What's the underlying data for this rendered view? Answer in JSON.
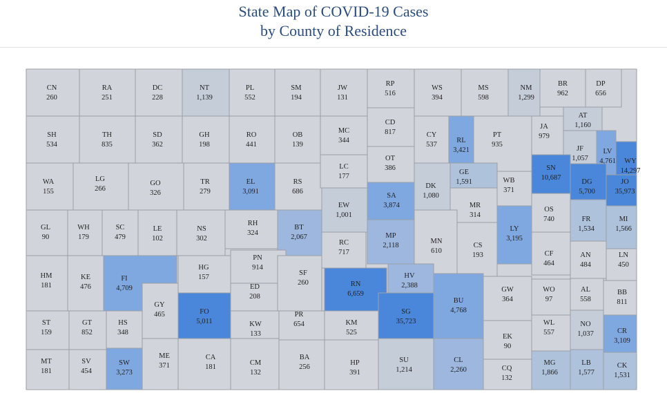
{
  "title": {
    "line1": "State Map of COVID-19 Cases",
    "line2": "by County of Residence"
  },
  "colors": {
    "level0": "#d1d5db",
    "level1": "#c5cdd8",
    "level2": "#afc2dc",
    "level3": "#9db7df",
    "level4": "#80a8e0",
    "level5": "#4a87db",
    "border": "#9aa0a6"
  },
  "counties": [
    {
      "abbr": "CN",
      "cases": "260"
    },
    {
      "abbr": "RA",
      "cases": "251"
    },
    {
      "abbr": "DC",
      "cases": "228"
    },
    {
      "abbr": "NT",
      "cases": "1,139"
    },
    {
      "abbr": "PL",
      "cases": "552"
    },
    {
      "abbr": "SM",
      "cases": "194"
    },
    {
      "abbr": "JW",
      "cases": "131"
    },
    {
      "abbr": "RP",
      "cases": "516"
    },
    {
      "abbr": "WS",
      "cases": "394"
    },
    {
      "abbr": "MS",
      "cases": "598"
    },
    {
      "abbr": "NM",
      "cases": "1,299"
    },
    {
      "abbr": "BR",
      "cases": "962"
    },
    {
      "abbr": "DP",
      "cases": "656"
    },
    {
      "abbr": "SH",
      "cases": "534"
    },
    {
      "abbr": "TH",
      "cases": "835"
    },
    {
      "abbr": "SD",
      "cases": "362"
    },
    {
      "abbr": "GH",
      "cases": "198"
    },
    {
      "abbr": "RO",
      "cases": "441"
    },
    {
      "abbr": "OB",
      "cases": "139"
    },
    {
      "abbr": "MC",
      "cases": "344"
    },
    {
      "abbr": "CD",
      "cases": "817"
    },
    {
      "abbr": "CY",
      "cases": "537"
    },
    {
      "abbr": "RL",
      "cases": "3,421"
    },
    {
      "abbr": "PT",
      "cases": "935"
    },
    {
      "abbr": "JA",
      "cases": "979"
    },
    {
      "abbr": "AT",
      "cases": "1,160"
    },
    {
      "abbr": "JF",
      "cases": "1,057"
    },
    {
      "abbr": "LV",
      "cases": "4,761"
    },
    {
      "abbr": "WY",
      "cases": "14,297"
    },
    {
      "abbr": "WA",
      "cases": "155"
    },
    {
      "abbr": "LG",
      "cases": "266"
    },
    {
      "abbr": "GO",
      "cases": "326"
    },
    {
      "abbr": "TR",
      "cases": "279"
    },
    {
      "abbr": "EL",
      "cases": "3,091"
    },
    {
      "abbr": "RS",
      "cases": "686"
    },
    {
      "abbr": "LC",
      "cases": "177"
    },
    {
      "abbr": "OT",
      "cases": "386"
    },
    {
      "abbr": "DK",
      "cases": "1,080"
    },
    {
      "abbr": "GE",
      "cases": "1,591"
    },
    {
      "abbr": "WB",
      "cases": "371"
    },
    {
      "abbr": "SN",
      "cases": "10,687"
    },
    {
      "abbr": "DG",
      "cases": "5,700"
    },
    {
      "abbr": "JO",
      "cases": "35,973"
    },
    {
      "abbr": "GL",
      "cases": "90"
    },
    {
      "abbr": "WH",
      "cases": "179"
    },
    {
      "abbr": "SC",
      "cases": "479"
    },
    {
      "abbr": "LE",
      "cases": "102"
    },
    {
      "abbr": "NS",
      "cases": "302"
    },
    {
      "abbr": "RH",
      "cases": "324"
    },
    {
      "abbr": "BT",
      "cases": "2,067"
    },
    {
      "abbr": "EW",
      "cases": "1,001"
    },
    {
      "abbr": "SA",
      "cases": "3,874"
    },
    {
      "abbr": "MR",
      "cases": "314"
    },
    {
      "abbr": "OS",
      "cases": "740"
    },
    {
      "abbr": "FR",
      "cases": "1,534"
    },
    {
      "abbr": "MI",
      "cases": "1,566"
    },
    {
      "abbr": "HM",
      "cases": "181"
    },
    {
      "abbr": "KE",
      "cases": "476"
    },
    {
      "abbr": "FI",
      "cases": "4,709"
    },
    {
      "abbr": "GY",
      "cases": "465"
    },
    {
      "abbr": "HG",
      "cases": "157"
    },
    {
      "abbr": "PN",
      "cases": "914"
    },
    {
      "abbr": "RC",
      "cases": "717"
    },
    {
      "abbr": "MP",
      "cases": "2,118"
    },
    {
      "abbr": "MN",
      "cases": "610"
    },
    {
      "abbr": "CS",
      "cases": "193"
    },
    {
      "abbr": "LY",
      "cases": "3,195"
    },
    {
      "abbr": "CF",
      "cases": "464"
    },
    {
      "abbr": "AN",
      "cases": "484"
    },
    {
      "abbr": "LN",
      "cases": "450"
    },
    {
      "abbr": "ED",
      "cases": "208"
    },
    {
      "abbr": "SF",
      "cases": "260"
    },
    {
      "abbr": "RN",
      "cases": "6,659"
    },
    {
      "abbr": "HV",
      "cases": "2,388"
    },
    {
      "abbr": "BU",
      "cases": "4,768"
    },
    {
      "abbr": "GW",
      "cases": "364"
    },
    {
      "abbr": "WO",
      "cases": "97"
    },
    {
      "abbr": "AL",
      "cases": "558"
    },
    {
      "abbr": "BB",
      "cases": "811"
    },
    {
      "abbr": "ST",
      "cases": "159"
    },
    {
      "abbr": "GT",
      "cases": "852"
    },
    {
      "abbr": "HS",
      "cases": "348"
    },
    {
      "abbr": "FO",
      "cases": "5,011"
    },
    {
      "abbr": "KW",
      "cases": "133"
    },
    {
      "abbr": "PR",
      "cases": "654"
    },
    {
      "abbr": "KM",
      "cases": "525"
    },
    {
      "abbr": "SG",
      "cases": "35,723"
    },
    {
      "abbr": "EK",
      "cases": "90"
    },
    {
      "abbr": "WL",
      "cases": "557"
    },
    {
      "abbr": "NO",
      "cases": "1,037"
    },
    {
      "abbr": "CR",
      "cases": "3,109"
    },
    {
      "abbr": "MT",
      "cases": "181"
    },
    {
      "abbr": "SV",
      "cases": "454"
    },
    {
      "abbr": "SW",
      "cases": "3,273"
    },
    {
      "abbr": "ME",
      "cases": "371"
    },
    {
      "abbr": "CA",
      "cases": "181"
    },
    {
      "abbr": "CM",
      "cases": "132"
    },
    {
      "abbr": "BA",
      "cases": "256"
    },
    {
      "abbr": "HP",
      "cases": "391"
    },
    {
      "abbr": "SU",
      "cases": "1,214"
    },
    {
      "abbr": "CL",
      "cases": "2,260"
    },
    {
      "abbr": "CQ",
      "cases": "132"
    },
    {
      "abbr": "MG",
      "cases": "1,866"
    },
    {
      "abbr": "LB",
      "cases": "1,577"
    },
    {
      "abbr": "CK",
      "cases": "1,531"
    }
  ]
}
